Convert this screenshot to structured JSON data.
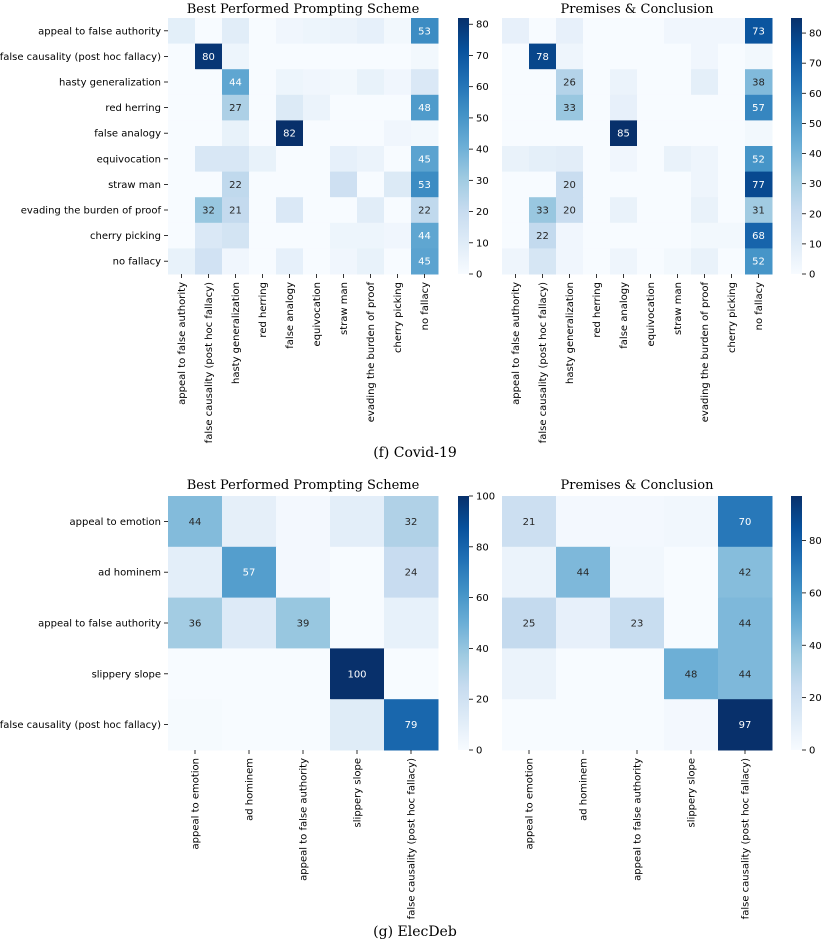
{
  "figure": {
    "captions": [
      "(f) Covid-19",
      "(g) ElecDeb"
    ]
  },
  "chart_data": [
    {
      "type": "heatmap",
      "title": "Best Performed Prompting Scheme",
      "group": "Covid-19",
      "rows": [
        "appeal to false authority",
        "false causality (post hoc fallacy)",
        "hasty generalization",
        "red herring",
        "false analogy",
        "equivocation",
        "straw man",
        "evading the burden of proof",
        "cherry picking",
        "no fallacy"
      ],
      "cols": [
        "appeal to false authority",
        "false causality (post hoc fallacy)",
        "hasty generalization",
        "red herring",
        "false analogy",
        "equivocation",
        "straw man",
        "evading the burden of proof",
        "cherry picking",
        "no fallacy"
      ],
      "values": [
        [
          8,
          0,
          9,
          0,
          3,
          4,
          5,
          7,
          2,
          53
        ],
        [
          0,
          80,
          4,
          0,
          0,
          0,
          0,
          0,
          0,
          2
        ],
        [
          0,
          0,
          44,
          0,
          4,
          3,
          2,
          6,
          3,
          12
        ],
        [
          0,
          0,
          27,
          0,
          11,
          5,
          0,
          0,
          0,
          48
        ],
        [
          0,
          0,
          6,
          0,
          82,
          0,
          0,
          0,
          3,
          2
        ],
        [
          0,
          13,
          13,
          6,
          0,
          0,
          7,
          5,
          0,
          45
        ],
        [
          0,
          0,
          22,
          0,
          0,
          0,
          17,
          0,
          11,
          53
        ],
        [
          0,
          32,
          21,
          0,
          12,
          0,
          0,
          9,
          0,
          22
        ],
        [
          0,
          12,
          15,
          0,
          0,
          0,
          4,
          4,
          3,
          44
        ],
        [
          6,
          16,
          3,
          0,
          7,
          0,
          3,
          6,
          0,
          45
        ]
      ],
      "show_labels_min": 20,
      "vmin": 0,
      "vmax": 82,
      "colorbar_ticks": [
        0,
        10,
        20,
        30,
        40,
        50,
        60,
        70,
        80
      ]
    },
    {
      "type": "heatmap",
      "title": "Premises & Conclusion",
      "group": "Covid-19",
      "rows": [
        "appeal to false authority",
        "false causality (post hoc fallacy)",
        "hasty generalization",
        "red herring",
        "false analogy",
        "equivocation",
        "straw man",
        "evading the burden of proof",
        "cherry picking",
        "no fallacy"
      ],
      "cols": [
        "appeal to false authority",
        "false causality (post hoc fallacy)",
        "hasty generalization",
        "red herring",
        "false analogy",
        "equivocation",
        "straw man",
        "evading the burden of proof",
        "cherry picking",
        "no fallacy"
      ],
      "values": [
        [
          7,
          0,
          7,
          0,
          0,
          0,
          3,
          3,
          3,
          73
        ],
        [
          0,
          78,
          4,
          0,
          0,
          0,
          0,
          3,
          0,
          2
        ],
        [
          0,
          0,
          26,
          0,
          5,
          0,
          0,
          8,
          0,
          38
        ],
        [
          0,
          0,
          33,
          0,
          7,
          0,
          0,
          0,
          0,
          57
        ],
        [
          0,
          0,
          0,
          0,
          85,
          0,
          0,
          0,
          0,
          2
        ],
        [
          6,
          8,
          9,
          0,
          3,
          0,
          6,
          4,
          0,
          52
        ],
        [
          0,
          0,
          20,
          0,
          0,
          0,
          0,
          4,
          0,
          77
        ],
        [
          0,
          33,
          20,
          0,
          6,
          0,
          0,
          6,
          0,
          31
        ],
        [
          0,
          22,
          3,
          0,
          0,
          0,
          0,
          2,
          2,
          68
        ],
        [
          4,
          14,
          3,
          0,
          4,
          0,
          2,
          6,
          0,
          52
        ]
      ],
      "show_labels_min": 20,
      "vmin": 0,
      "vmax": 85,
      "colorbar_ticks": [
        0,
        10,
        20,
        30,
        40,
        50,
        60,
        70,
        80
      ]
    },
    {
      "type": "heatmap",
      "title": "Best Performed Prompting Scheme",
      "group": "ElecDeb",
      "rows": [
        "appeal to emotion",
        "ad hominem",
        "appeal to false authority",
        "slippery slope",
        "false causality (post hoc fallacy)"
      ],
      "cols": [
        "appeal to emotion",
        "ad hominem",
        "appeal to false authority",
        "slippery slope",
        "false causality (post hoc fallacy)"
      ],
      "values": [
        [
          44,
          9,
          2,
          10,
          32
        ],
        [
          10,
          57,
          2,
          0,
          24
        ],
        [
          36,
          13,
          39,
          0,
          8
        ],
        [
          0,
          0,
          0,
          100,
          0
        ],
        [
          1,
          0,
          0,
          12,
          79
        ]
      ],
      "show_labels_min": 20,
      "vmin": 0,
      "vmax": 100,
      "colorbar_ticks": [
        0,
        20,
        40,
        60,
        80,
        100
      ]
    },
    {
      "type": "heatmap",
      "title": "Premises & Conclusion",
      "group": "ElecDeb",
      "rows": [
        "appeal to emotion",
        "ad hominem",
        "appeal to false authority",
        "slippery slope",
        "false causality (post hoc fallacy)"
      ],
      "cols": [
        "appeal to emotion",
        "ad hominem",
        "appeal to false authority",
        "slippery slope",
        "false causality (post hoc fallacy)"
      ],
      "values": [
        [
          21,
          2,
          2,
          3,
          70
        ],
        [
          6,
          44,
          3,
          0,
          42
        ],
        [
          25,
          8,
          23,
          0,
          44
        ],
        [
          6,
          0,
          0,
          48,
          44
        ],
        [
          0,
          0,
          0,
          2,
          97
        ]
      ],
      "show_labels_min": 20,
      "vmin": 0,
      "vmax": 97,
      "colorbar_ticks": [
        0,
        20,
        40,
        60,
        80
      ]
    }
  ]
}
